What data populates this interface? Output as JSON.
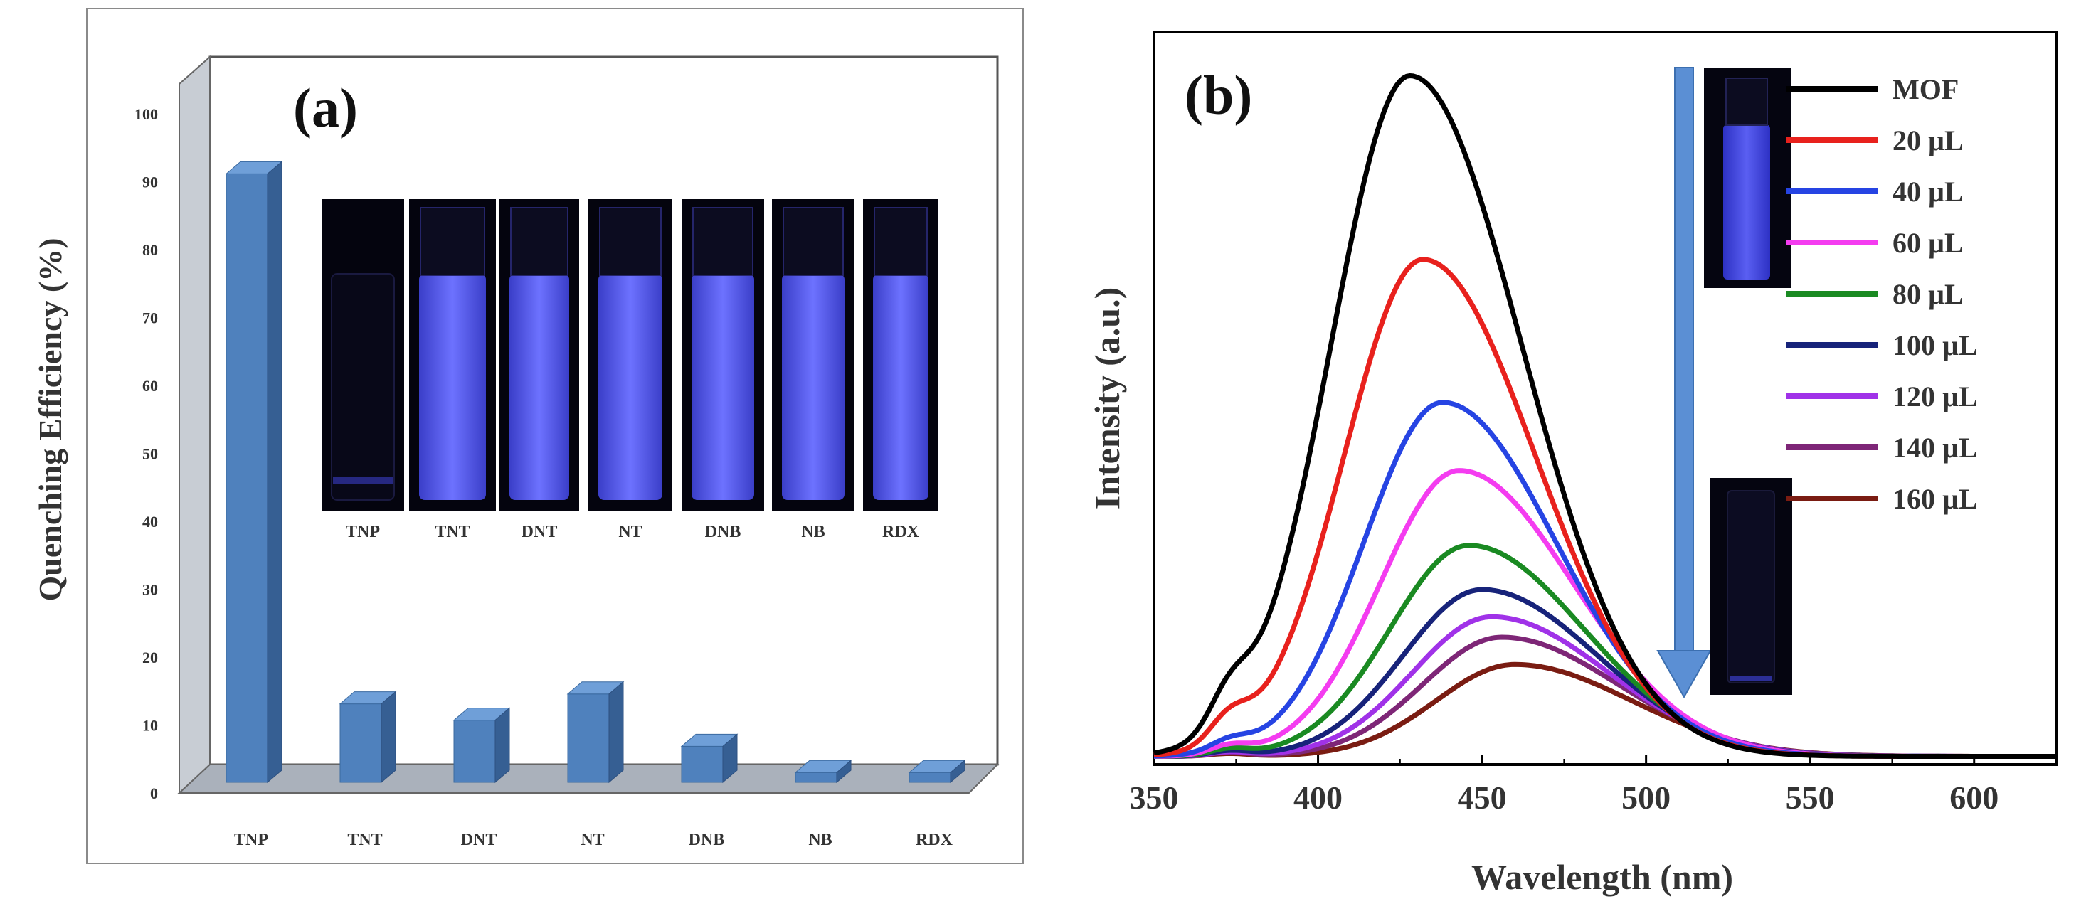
{
  "chart_data": [
    {
      "type": "bar",
      "panel_label": "(a)",
      "ylabel": "Quenching Efficiency (%)",
      "xlabel": "",
      "ylim": [
        0,
        100
      ],
      "yticks": [
        "0",
        "10",
        "20",
        "30",
        "40",
        "50",
        "60",
        "70",
        "80",
        "90",
        "100"
      ],
      "categories": [
        "TNP",
        "TNT",
        "DNT",
        "NT",
        "DNB",
        "NB",
        "RDX"
      ],
      "values": [
        93,
        12,
        9.5,
        13.5,
        5.5,
        1.5,
        1.5
      ],
      "bar_color": "#4f81bd",
      "inset_vial_labels": [
        "TNP",
        "TNT",
        "DNT",
        "NT",
        "DNB",
        "NB",
        "RDX"
      ],
      "inset_vial_lit": [
        false,
        true,
        true,
        true,
        true,
        true,
        true
      ]
    },
    {
      "type": "line",
      "panel_label": "(b)",
      "xlabel": "Wavelength (nm)",
      "ylabel": "Intensity (a.u.)",
      "xlim": [
        350,
        625
      ],
      "xticks": [
        "350",
        "400",
        "450",
        "500",
        "550",
        "600"
      ],
      "series": [
        {
          "name": "MOF",
          "color": "#000000",
          "peak_x": 428,
          "peak_y": 1.0
        },
        {
          "name": "20 µL",
          "color": "#e8211d",
          "peak_x": 432,
          "peak_y": 0.73
        },
        {
          "name": "40 µL",
          "color": "#2644e3",
          "peak_x": 438,
          "peak_y": 0.52
        },
        {
          "name": "60 µL",
          "color": "#f43cf0",
          "peak_x": 443,
          "peak_y": 0.42
        },
        {
          "name": "80 µL",
          "color": "#1a8a22",
          "peak_x": 446,
          "peak_y": 0.31
        },
        {
          "name": "100 µL",
          "color": "#17237a",
          "peak_x": 450,
          "peak_y": 0.245
        },
        {
          "name": "120 µL",
          "color": "#a032e8",
          "peak_x": 453,
          "peak_y": 0.205
        },
        {
          "name": "140 µL",
          "color": "#7e2677",
          "peak_x": 456,
          "peak_y": 0.175
        },
        {
          "name": "160 µL",
          "color": "#7a1c12",
          "peak_x": 460,
          "peak_y": 0.135
        }
      ]
    }
  ]
}
